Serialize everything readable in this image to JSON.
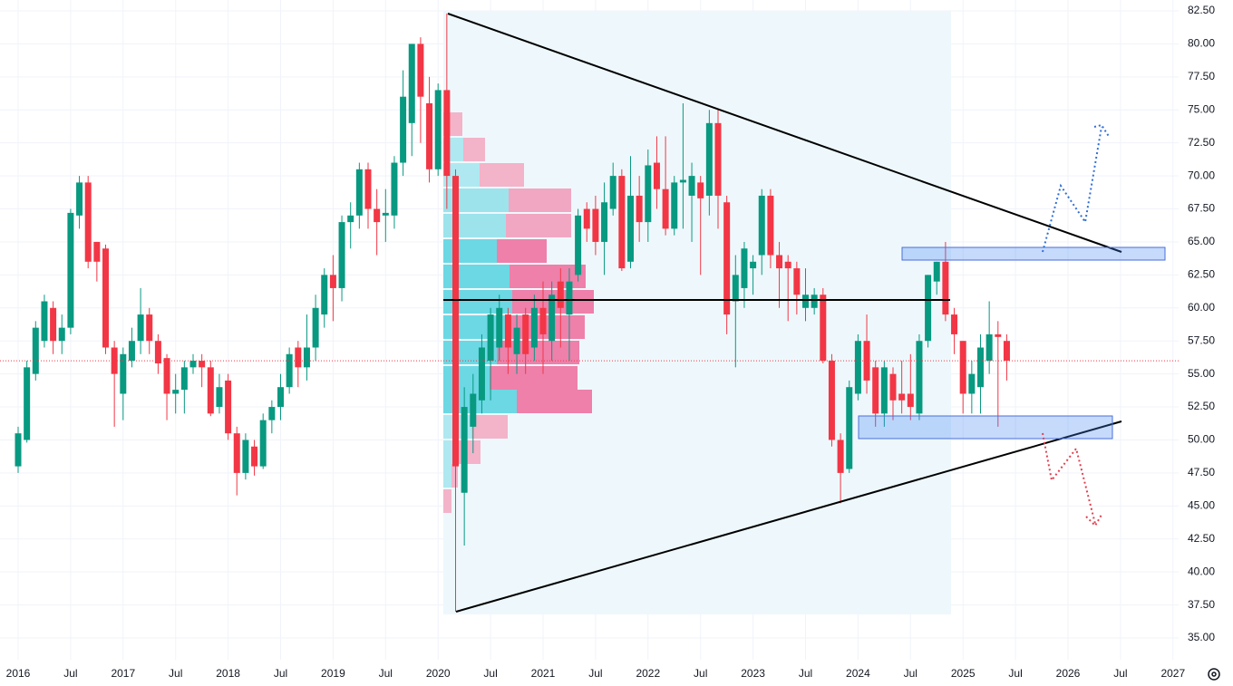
{
  "chart_data": {
    "type": "candlestick",
    "x": [
      "2016-01",
      "2016-02",
      "2016-03",
      "2016-04",
      "2016-05",
      "2016-06",
      "2016-07",
      "2016-08",
      "2016-09",
      "2016-10",
      "2016-11",
      "2016-12",
      "2017-01",
      "2017-02",
      "2017-03",
      "2017-04",
      "2017-05",
      "2017-06",
      "2017-07",
      "2017-08",
      "2017-09",
      "2017-10",
      "2017-11",
      "2017-12",
      "2018-01",
      "2018-02",
      "2018-03",
      "2018-04",
      "2018-05",
      "2018-06",
      "2018-07",
      "2018-08",
      "2018-09",
      "2018-10",
      "2018-11",
      "2018-12",
      "2019-01",
      "2019-02",
      "2019-03",
      "2019-04",
      "2019-05",
      "2019-06",
      "2019-07",
      "2019-08",
      "2019-09",
      "2019-10",
      "2019-11",
      "2019-12",
      "2020-01",
      "2020-02",
      "2020-03",
      "2020-04",
      "2020-05",
      "2020-06",
      "2020-07",
      "2020-08",
      "2020-09",
      "2020-10",
      "2020-11",
      "2020-12",
      "2021-01",
      "2021-02",
      "2021-03",
      "2021-04",
      "2021-05",
      "2021-06",
      "2021-07",
      "2021-08",
      "2021-09",
      "2021-10",
      "2021-11",
      "2021-12",
      "2022-01",
      "2022-02",
      "2022-03",
      "2022-04",
      "2022-05",
      "2022-06",
      "2022-07",
      "2022-08",
      "2022-09",
      "2022-10",
      "2022-11",
      "2022-12",
      "2023-01",
      "2023-02",
      "2023-03",
      "2023-04",
      "2023-05",
      "2023-06",
      "2023-07",
      "2023-08",
      "2023-09",
      "2023-10",
      "2023-11",
      "2023-12",
      "2024-01",
      "2024-02",
      "2024-03",
      "2024-04",
      "2024-05",
      "2024-06",
      "2024-07",
      "2024-08",
      "2024-09",
      "2024-10",
      "2024-11",
      "2024-12",
      "2025-01",
      "2025-02",
      "2025-03",
      "2025-04",
      "2025-05",
      "2025-06"
    ],
    "open": [
      48,
      50,
      55,
      57.5,
      60,
      57.5,
      58.5,
      67,
      69.5,
      65,
      64.5,
      57,
      53.5,
      56,
      57.5,
      59.5,
      57.5,
      56.2,
      53.5,
      53.8,
      55.5,
      56,
      55.5,
      52.5,
      54.5,
      50.5,
      47.5,
      49.5,
      48,
      51.5,
      52.5,
      54,
      57,
      55.5,
      57,
      59.5,
      62.5,
      61.5,
      66.5,
      67,
      70.5,
      67.5,
      67,
      67,
      71,
      74,
      80,
      75.5,
      70.5,
      76.5,
      70,
      46,
      51,
      53,
      56,
      57,
      59.5,
      56.5,
      59.5,
      57,
      60,
      57.5,
      62,
      59.5,
      62.5,
      67.5,
      67.5,
      65,
      67.5,
      70,
      63.5,
      68.5,
      66.5,
      71,
      69,
      66,
      69.5,
      68.5,
      69.5,
      68.5,
      74,
      68,
      60.5,
      61.5,
      63,
      64,
      68.5,
      64,
      63.5,
      63,
      60,
      60,
      61,
      56,
      50,
      47.8,
      53.5,
      57.5,
      55.5,
      52,
      55,
      53.5,
      53.5,
      52,
      57.5,
      62,
      63.5,
      59.5,
      57.5,
      53.5,
      54,
      56,
      58,
      57.5
    ],
    "high": [
      51,
      56,
      59,
      61,
      60.5,
      59.5,
      67.5,
      70,
      70,
      65,
      64.8,
      57.5,
      57,
      58.5,
      61.5,
      60,
      58,
      56.5,
      55,
      56,
      56.5,
      56.5,
      56,
      55,
      55,
      51,
      50.5,
      50,
      52,
      53,
      55,
      57,
      57.5,
      59.5,
      61,
      63,
      64,
      67,
      68,
      71,
      71,
      69,
      69,
      71.5,
      78,
      80,
      80.5,
      77.5,
      77,
      82.3,
      70.5,
      54,
      55,
      58,
      60,
      61,
      60,
      59.5,
      60,
      61,
      62,
      62,
      63,
      63,
      67.5,
      68,
      68.5,
      69.5,
      71,
      70.5,
      71.5,
      70,
      72,
      73,
      73,
      70,
      75.5,
      71,
      70,
      75,
      75,
      68.5,
      64,
      65,
      64,
      69,
      69,
      65,
      64,
      63.5,
      63,
      61.5,
      61.5,
      56.5,
      50.5,
      54.5,
      58,
      59.5,
      56,
      56,
      55.5,
      56,
      56.5,
      58,
      62.5,
      63.5,
      65,
      60,
      57.5,
      56,
      58,
      60.5,
      59,
      58
    ],
    "low": [
      47.5,
      49.8,
      54.5,
      57,
      56.5,
      56.5,
      58,
      66,
      63,
      62,
      56.5,
      51,
      51.5,
      55.5,
      56.5,
      56.5,
      55,
      51.5,
      52,
      52,
      55,
      54,
      51.8,
      52,
      50,
      45.8,
      47,
      47.3,
      47.8,
      50.5,
      51.5,
      53.5,
      54,
      54.5,
      56,
      58.5,
      59,
      60.5,
      64.5,
      66,
      66,
      64,
      65,
      66,
      70,
      71.5,
      72.5,
      69.5,
      70,
      67.5,
      37,
      42,
      49,
      52,
      53,
      56,
      55,
      55,
      55,
      56,
      55,
      56,
      57,
      56,
      62,
      65,
      64,
      62.5,
      67,
      62.8,
      63,
      65,
      65,
      67.5,
      65.5,
      65.5,
      66,
      65,
      62.5,
      67,
      66,
      58,
      55.5,
      60,
      61,
      62.5,
      63,
      60,
      59,
      59.5,
      59,
      59.5,
      55.8,
      49.5,
      45.2,
      47.5,
      53,
      53.5,
      51,
      51,
      51.5,
      52,
      51.5,
      51.5,
      57,
      61,
      59,
      56.5,
      52,
      52,
      52,
      55,
      51,
      54.5
    ],
    "close": [
      50.5,
      55.5,
      58.5,
      60.5,
      57.5,
      58.5,
      67.2,
      69.5,
      63.5,
      63.5,
      57,
      55,
      56.5,
      57.5,
      59.5,
      57.5,
      55.8,
      53.5,
      53.8,
      55.5,
      56,
      55.5,
      52,
      54,
      50.5,
      47.5,
      50,
      48,
      51.5,
      52.5,
      54,
      56.5,
      55.5,
      57,
      60,
      62.5,
      61.5,
      66.5,
      67,
      70.5,
      67.5,
      66.5,
      67.2,
      71,
      76,
      80,
      76,
      70.5,
      76.5,
      70,
      48,
      52.5,
      53.5,
      57,
      59.5,
      60,
      57,
      58.5,
      56.5,
      60,
      58,
      61,
      60,
      62,
      67,
      66,
      65,
      68,
      70,
      63,
      68.5,
      66.5,
      70.8,
      69,
      66,
      69.5,
      69.7,
      70,
      68.3,
      74,
      68.5,
      59.5,
      62.5,
      64.5,
      63.5,
      68.5,
      64,
      63,
      63,
      61,
      61,
      61,
      56,
      50,
      47.5,
      54,
      57.5,
      54.5,
      52,
      55.5,
      53,
      53,
      52.5,
      57.5,
      62.5,
      63.5,
      59.5,
      58,
      53.5,
      55,
      57,
      58,
      57.8,
      56
    ],
    "up_color": "#089981",
    "down_color": "#f23645",
    "xticks": [
      {
        "value": "2016-01",
        "label": "2016"
      },
      {
        "value": "2016-07",
        "label": "Jul"
      },
      {
        "value": "2017-01",
        "label": "2017"
      },
      {
        "value": "2017-07",
        "label": "Jul"
      },
      {
        "value": "2018-01",
        "label": "2018"
      },
      {
        "value": "2018-07",
        "label": "Jul"
      },
      {
        "value": "2019-01",
        "label": "2019"
      },
      {
        "value": "2019-07",
        "label": "Jul"
      },
      {
        "value": "2020-01",
        "label": "2020"
      },
      {
        "value": "2020-07",
        "label": "Jul"
      },
      {
        "value": "2021-01",
        "label": "2021"
      },
      {
        "value": "2021-07",
        "label": "Jul"
      },
      {
        "value": "2022-01",
        "label": "2022"
      },
      {
        "value": "2022-07",
        "label": "Jul"
      },
      {
        "value": "2023-01",
        "label": "2023"
      },
      {
        "value": "2023-07",
        "label": "Jul"
      },
      {
        "value": "2024-01",
        "label": "2024"
      },
      {
        "value": "2024-07",
        "label": "Jul"
      },
      {
        "value": "2025-01",
        "label": "2025"
      },
      {
        "value": "2025-07",
        "label": "Jul"
      },
      {
        "value": "2026-01",
        "label": "2026"
      },
      {
        "value": "2026-07",
        "label": "Jul"
      },
      {
        "value": "2027-01",
        "label": "2027"
      }
    ],
    "ylim": [
      35,
      82.5
    ],
    "yticks": [
      {
        "value": 35,
        "label": "35.00"
      },
      {
        "value": 37.5,
        "label": "37.50"
      },
      {
        "value": 40,
        "label": "40.00"
      },
      {
        "value": 42.5,
        "label": "42.50"
      },
      {
        "value": 45,
        "label": "45.00"
      },
      {
        "value": 47.5,
        "label": "47.50"
      },
      {
        "value": 50,
        "label": "50.00"
      },
      {
        "value": 52.5,
        "label": "52.50"
      },
      {
        "value": 55,
        "label": "55.00"
      },
      {
        "value": 57.5,
        "label": "57.50"
      },
      {
        "value": 60,
        "label": "60.00"
      },
      {
        "value": 62.5,
        "label": "62.50"
      },
      {
        "value": 65,
        "label": "65.00"
      },
      {
        "value": 67.5,
        "label": "67.50"
      },
      {
        "value": 70,
        "label": "70.00"
      },
      {
        "value": 72.5,
        "label": "72.50"
      },
      {
        "value": 75,
        "label": "75.00"
      },
      {
        "value": 77.5,
        "label": "77.50"
      },
      {
        "value": 80,
        "label": "80.00"
      },
      {
        "value": 82.5,
        "label": "82.50"
      }
    ],
    "grid": true
  }
}
